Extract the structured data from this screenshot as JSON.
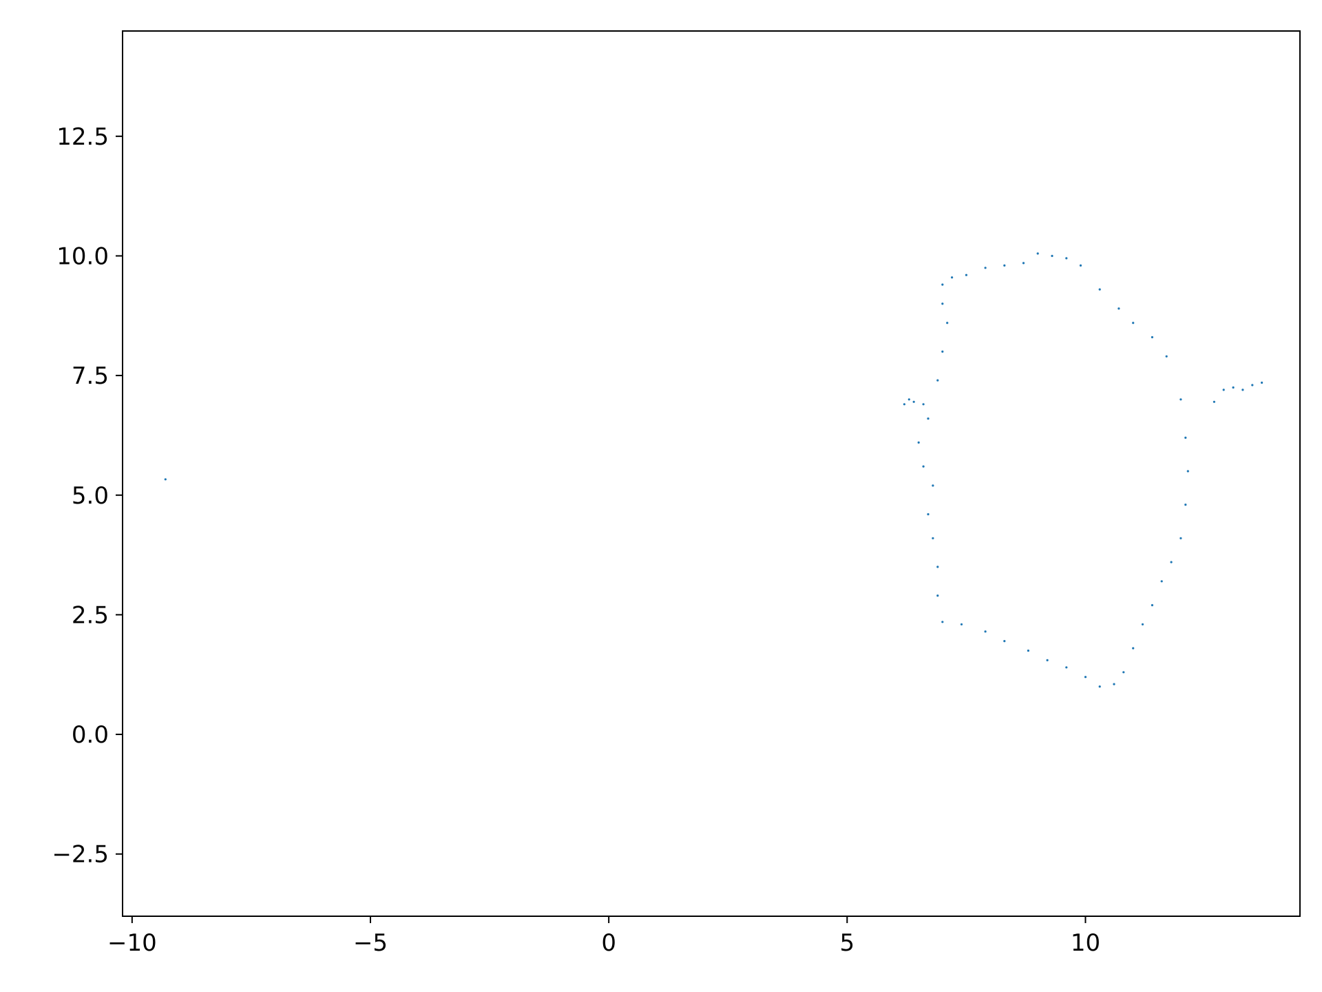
{
  "chart_data": {
    "type": "scatter",
    "title": "",
    "xlabel": "",
    "ylabel": "",
    "xlim": [
      -10.2,
      14.5
    ],
    "ylim": [
      -3.8,
      14.7
    ],
    "grid": false,
    "point_color": "#1f77b4",
    "x_ticks": [
      {
        "value": -10,
        "label": "−10"
      },
      {
        "value": -5,
        "label": "−5"
      },
      {
        "value": 0,
        "label": "0"
      },
      {
        "value": 5,
        "label": "5"
      },
      {
        "value": 10,
        "label": "10"
      }
    ],
    "y_ticks": [
      {
        "value": -2.5,
        "label": "−2.5"
      },
      {
        "value": 0,
        "label": "0.0"
      },
      {
        "value": 2.5,
        "label": "2.5"
      },
      {
        "value": 5,
        "label": "5.0"
      },
      {
        "value": 7.5,
        "label": "7.5"
      },
      {
        "value": 10,
        "label": "10.0"
      },
      {
        "value": 12.5,
        "label": "12.5"
      }
    ],
    "series": [
      {
        "values_description_note": "",
        "points": [
          [
            -9.3,
            5.33
          ],
          [
            6.2,
            6.9
          ],
          [
            6.3,
            7.0
          ],
          [
            6.4,
            6.95
          ],
          [
            6.6,
            6.9
          ],
          [
            12.7,
            6.95
          ],
          [
            12.9,
            7.2
          ],
          [
            13.1,
            7.25
          ],
          [
            13.3,
            7.2
          ],
          [
            13.5,
            7.3
          ],
          [
            13.7,
            7.35
          ],
          [
            7.0,
            9.4
          ],
          [
            7.2,
            9.55
          ],
          [
            7.5,
            9.6
          ],
          [
            7.9,
            9.75
          ],
          [
            8.3,
            9.8
          ],
          [
            8.7,
            9.85
          ],
          [
            9.0,
            10.05
          ],
          [
            9.3,
            10.0
          ],
          [
            9.6,
            9.95
          ],
          [
            9.9,
            9.8
          ],
          [
            10.3,
            9.3
          ],
          [
            10.7,
            8.9
          ],
          [
            11.0,
            8.6
          ],
          [
            11.4,
            8.3
          ],
          [
            11.7,
            7.9
          ],
          [
            12.0,
            7.0
          ],
          [
            12.1,
            6.2
          ],
          [
            12.15,
            5.5
          ],
          [
            12.1,
            4.8
          ],
          [
            12.0,
            4.1
          ],
          [
            11.8,
            3.6
          ],
          [
            11.6,
            3.2
          ],
          [
            11.4,
            2.7
          ],
          [
            11.2,
            2.3
          ],
          [
            11.0,
            1.8
          ],
          [
            10.8,
            1.3
          ],
          [
            10.6,
            1.05
          ],
          [
            10.3,
            1.0
          ],
          [
            10.0,
            1.2
          ],
          [
            9.6,
            1.4
          ],
          [
            9.2,
            1.55
          ],
          [
            8.8,
            1.75
          ],
          [
            8.3,
            1.95
          ],
          [
            7.9,
            2.15
          ],
          [
            7.4,
            2.3
          ],
          [
            7.0,
            2.35
          ],
          [
            6.9,
            2.9
          ],
          [
            6.9,
            3.5
          ],
          [
            6.8,
            4.1
          ],
          [
            6.7,
            4.6
          ],
          [
            6.8,
            5.2
          ],
          [
            6.6,
            5.6
          ],
          [
            6.5,
            6.1
          ],
          [
            6.7,
            6.6
          ],
          [
            6.9,
            7.4
          ],
          [
            7.0,
            8.0
          ],
          [
            7.1,
            8.6
          ],
          [
            7.0,
            9.0
          ]
        ]
      }
    ]
  }
}
